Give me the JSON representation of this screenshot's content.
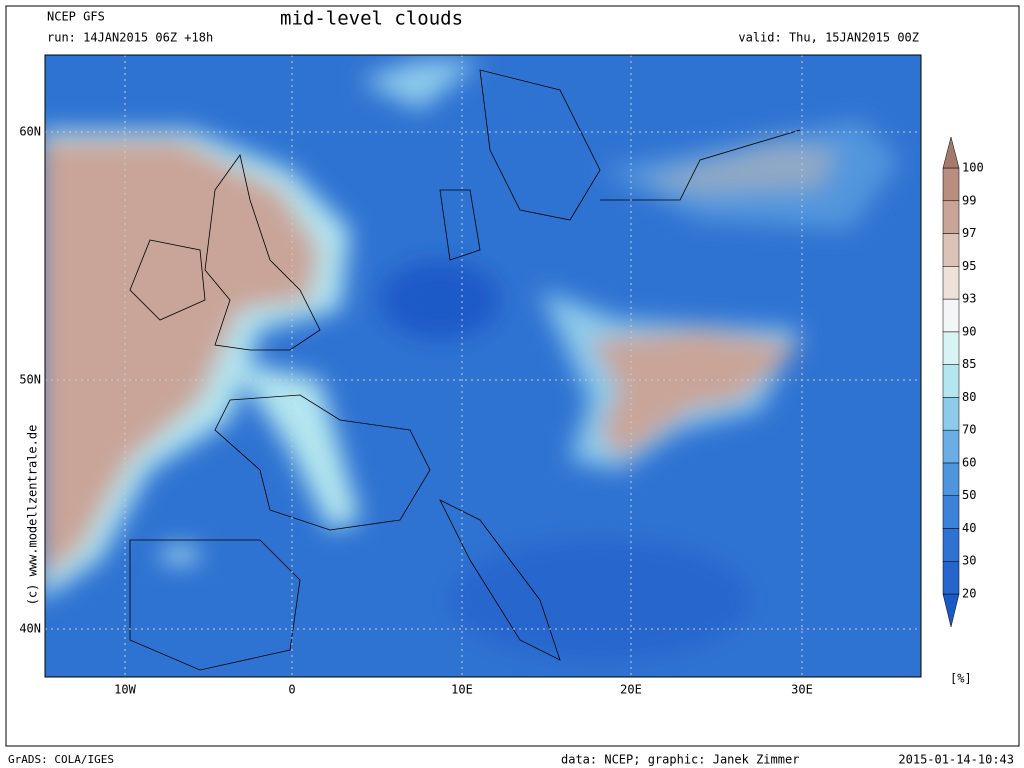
{
  "header": {
    "model": "NCEP GFS",
    "title": "mid-level clouds",
    "run": "run: 14JAN2015 06Z +18h",
    "valid": "valid: Thu, 15JAN2015 00Z"
  },
  "map": {
    "lat_labels": [
      "60N",
      "50N",
      "40N"
    ],
    "lon_labels": [
      "10W",
      "0",
      "10E",
      "20E",
      "30E"
    ],
    "credit": "(c) www.modellzentrale.de"
  },
  "colorbar": {
    "levels": [
      20,
      30,
      40,
      50,
      60,
      70,
      80,
      85,
      90,
      93,
      95,
      97,
      99,
      100
    ],
    "colors": [
      "#1a5ac8",
      "#2566cd",
      "#2f73d2",
      "#3b82d8",
      "#4d96de",
      "#6baee5",
      "#8ecbeb",
      "#b4e6ef",
      "#d8f3f3",
      "#f2f6f6",
      "#ede1da",
      "#dcc3b8",
      "#c9a498",
      "#b98d7f",
      "#a57a6e"
    ],
    "unit": "[%]"
  },
  "footer": {
    "left": "GrADS: COLA/IGES",
    "center": "data: NCEP; graphic: Janek Zimmer",
    "right": "2015-01-14-10:43"
  }
}
